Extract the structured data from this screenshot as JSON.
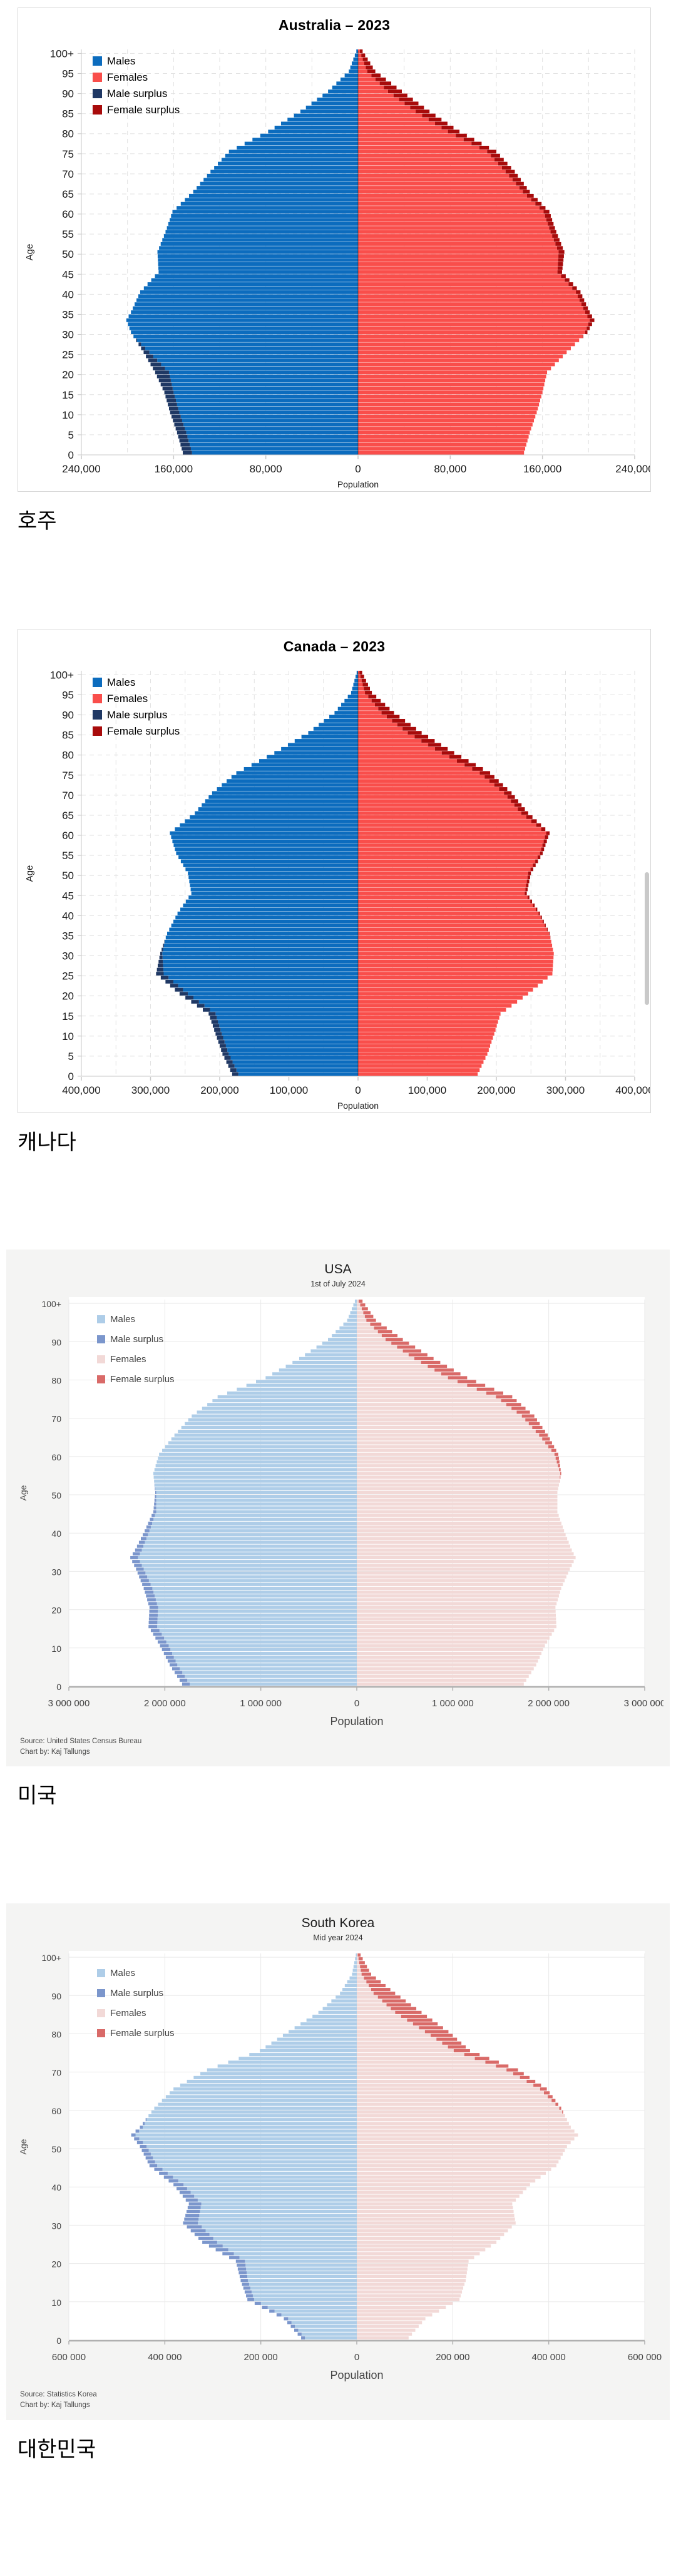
{
  "chart_data": [
    {
      "type": "bar",
      "subtype": "population-pyramid",
      "style": "classic",
      "title": "Australia – 2023",
      "caption": "호주",
      "xlabel": "Population",
      "ylabel": "Age",
      "x_max": 240000,
      "x_tick_step": 80000,
      "x_grid_step": 40000,
      "x_tick_labels": [
        "240,000",
        "160,000",
        "80,000",
        "0",
        "80,000",
        "160,000",
        "240,000"
      ],
      "y_tick_step": 5,
      "y_tick_labels": [
        "0",
        "5",
        "10",
        "15",
        "20",
        "25",
        "30",
        "35",
        "40",
        "45",
        "50",
        "55",
        "60",
        "65",
        "70",
        "75",
        "80",
        "85",
        "90",
        "95",
        "100+"
      ],
      "legend": [
        {
          "name": "Males",
          "color": "#0c6cbe"
        },
        {
          "name": "Females",
          "color": "#f94e4b"
        },
        {
          "name": "Male surplus",
          "color": "#1f3864"
        },
        {
          "name": "Female surplus",
          "color": "#a80b0b"
        }
      ],
      "colors": {
        "male": "#0c6cbe",
        "female": "#f94e4b",
        "male_surplus": "#1f3864",
        "female_surplus": "#a80b0b",
        "grid": "#e2e2e2",
        "axis": "#c9c9c9",
        "text": "#1a1a1a",
        "plot_bg": "#ffffff"
      },
      "source_lines": [],
      "has_scrollbar": false,
      "ages": [
        0,
        5,
        10,
        15,
        20,
        25,
        30,
        33,
        35,
        40,
        45,
        50,
        55,
        60,
        65,
        70,
        75,
        80,
        85,
        90,
        95,
        100
      ],
      "series": [
        {
          "name": "Males",
          "values": [
            152000,
            157000,
            163000,
            168000,
            176000,
            186000,
            197000,
            201000,
            197000,
            189000,
            173000,
            174000,
            167000,
            161000,
            143000,
            128000,
            112000,
            78000,
            50000,
            26000,
            8000,
            1500
          ]
        },
        {
          "name": "Females",
          "values": [
            144000,
            149000,
            155000,
            160000,
            164000,
            181000,
            199000,
            205000,
            201000,
            193000,
            177000,
            179000,
            172000,
            166000,
            149000,
            136000,
            120000,
            88000,
            62000,
            38000,
            15000,
            4000
          ]
        }
      ]
    },
    {
      "type": "bar",
      "subtype": "population-pyramid",
      "style": "classic",
      "title": "Canada – 2023",
      "caption": "캐나다",
      "xlabel": "Population",
      "ylabel": "Age",
      "x_max": 400000,
      "x_tick_step": 100000,
      "x_grid_step": 50000,
      "x_tick_labels": [
        "400,000",
        "300,000",
        "200,000",
        "100,000",
        "0",
        "100,000",
        "200,000",
        "300,000",
        "400,000"
      ],
      "y_tick_step": 5,
      "y_tick_labels": [
        "0",
        "5",
        "10",
        "15",
        "20",
        "25",
        "30",
        "35",
        "40",
        "45",
        "50",
        "55",
        "60",
        "65",
        "70",
        "75",
        "80",
        "85",
        "90",
        "95",
        "100+"
      ],
      "legend": [
        {
          "name": "Males",
          "color": "#0c6cbe"
        },
        {
          "name": "Females",
          "color": "#f94e4b"
        },
        {
          "name": "Male surplus",
          "color": "#1f3864"
        },
        {
          "name": "Female surplus",
          "color": "#a80b0b"
        }
      ],
      "colors": {
        "male": "#0c6cbe",
        "female": "#f94e4b",
        "male_surplus": "#1f3864",
        "female_surplus": "#a80b0b",
        "grid": "#e2e2e2",
        "axis": "#c9c9c9",
        "text": "#1a1a1a",
        "plot_bg": "#ffffff"
      },
      "source_lines": [],
      "has_scrollbar": true,
      "ages": [
        0,
        5,
        10,
        15,
        20,
        25,
        30,
        35,
        40,
        45,
        50,
        55,
        60,
        65,
        70,
        75,
        80,
        85,
        90,
        95,
        100
      ],
      "series": [
        {
          "name": "Males",
          "values": [
            182000,
            196000,
            206000,
            216000,
            258000,
            292000,
            286000,
            276000,
            261000,
            241000,
            246000,
            263000,
            272000,
            236000,
            211000,
            176000,
            121000,
            72000,
            34000,
            10000,
            2000
          ]
        },
        {
          "name": "Females",
          "values": [
            173000,
            187000,
            197000,
            206000,
            246000,
            281000,
            283000,
            277000,
            263000,
            244000,
            250000,
            267000,
            277000,
            246000,
            222000,
            191000,
            139000,
            92000,
            52000,
            20000,
            6000
          ]
        }
      ]
    },
    {
      "type": "bar",
      "subtype": "population-pyramid",
      "style": "modern",
      "title": "USA",
      "subtitle": "1st of July 2024",
      "caption": "미국",
      "xlabel": "Population",
      "ylabel": "Age",
      "x_max": 3000000,
      "x_tick_step": 1000000,
      "x_grid_step": 1000000,
      "x_tick_labels": [
        "3 000 000",
        "2 000 000",
        "1 000 000",
        "0",
        "1 000 000",
        "2 000 000",
        "3 000 000"
      ],
      "y_tick_step": 10,
      "y_tick_labels": [
        "0",
        "10",
        "20",
        "30",
        "40",
        "50",
        "60",
        "70",
        "80",
        "90",
        "100+"
      ],
      "legend": [
        {
          "name": "Males",
          "color": "#aecde8"
        },
        {
          "name": "Male surplus",
          "color": "#7b96cc"
        },
        {
          "name": "Females",
          "color": "#f2d9d7"
        },
        {
          "name": "Female surplus",
          "color": "#d96a68"
        }
      ],
      "colors": {
        "male": "#aecde8",
        "female": "#f2d9d7",
        "male_surplus": "#7b96cc",
        "female_surplus": "#d96a68",
        "grid": "#e9e9e9",
        "axis": "#b0b0b0",
        "text": "#444444",
        "plot_bg": "#ffffff"
      },
      "source_lines": [
        "Source: United States Census Bureau",
        "Chart by: Kaj Tallungs"
      ],
      "has_scrollbar": false,
      "ages": [
        0,
        5,
        10,
        15,
        20,
        25,
        30,
        33,
        35,
        40,
        45,
        50,
        55,
        60,
        65,
        70,
        75,
        80,
        85,
        90,
        95,
        100
      ],
      "series": [
        {
          "name": "Males",
          "values": [
            1820000,
            1950000,
            2050000,
            2170000,
            2160000,
            2220000,
            2300000,
            2360000,
            2310000,
            2210000,
            2120000,
            2100000,
            2120000,
            2060000,
            1900000,
            1720000,
            1450000,
            950000,
            600000,
            300000,
            100000,
            20000
          ]
        },
        {
          "name": "Females",
          "values": [
            1740000,
            1870000,
            1960000,
            2080000,
            2070000,
            2130000,
            2220000,
            2280000,
            2240000,
            2160000,
            2090000,
            2090000,
            2130000,
            2100000,
            1990000,
            1850000,
            1620000,
            1150000,
            800000,
            480000,
            200000,
            60000
          ]
        }
      ]
    },
    {
      "type": "bar",
      "subtype": "population-pyramid",
      "style": "modern",
      "title": "South Korea",
      "subtitle": "Mid year 2024",
      "caption": "대한민국",
      "xlabel": "Population",
      "ylabel": "Age",
      "x_max": 600000,
      "x_tick_step": 200000,
      "x_grid_step": 200000,
      "x_tick_labels": [
        "600 000",
        "400 000",
        "200 000",
        "0",
        "200 000",
        "400 000",
        "600 000"
      ],
      "y_tick_step": 10,
      "y_tick_labels": [
        "0",
        "10",
        "20",
        "30",
        "40",
        "50",
        "60",
        "70",
        "80",
        "90",
        "100+"
      ],
      "legend": [
        {
          "name": "Males",
          "color": "#aecde8"
        },
        {
          "name": "Male surplus",
          "color": "#7b96cc"
        },
        {
          "name": "Females",
          "color": "#f2d9d7"
        },
        {
          "name": "Female surplus",
          "color": "#d96a68"
        }
      ],
      "colors": {
        "male": "#aecde8",
        "female": "#f2d9d7",
        "male_surplus": "#7b96cc",
        "female_surplus": "#d96a68",
        "grid": "#e9e9e9",
        "axis": "#b0b0b0",
        "text": "#444444",
        "plot_bg": "#ffffff"
      },
      "source_lines": [
        "Source: Statistics Korea",
        "Chart by: Kaj Tallungs"
      ],
      "has_scrollbar": false,
      "ages": [
        0,
        5,
        10,
        15,
        20,
        25,
        30,
        35,
        40,
        45,
        50,
        53,
        55,
        60,
        65,
        70,
        75,
        80,
        85,
        90,
        95,
        100
      ],
      "series": [
        {
          "name": "Males",
          "values": [
            116000,
            152000,
            228000,
            242000,
            252000,
            322000,
            362000,
            350000,
            382000,
            432000,
            452000,
            470000,
            452000,
            422000,
            382000,
            312000,
            202000,
            142000,
            80000,
            35000,
            10000,
            2000
          ]
        },
        {
          "name": "Females",
          "values": [
            108000,
            143000,
            214000,
            227000,
            233000,
            291000,
            331000,
            324000,
            361000,
            416000,
            438000,
            461000,
            446000,
            426000,
            396000,
            336000,
            236000,
            191000,
            135000,
            80000,
            30000,
            8000
          ]
        }
      ]
    }
  ]
}
